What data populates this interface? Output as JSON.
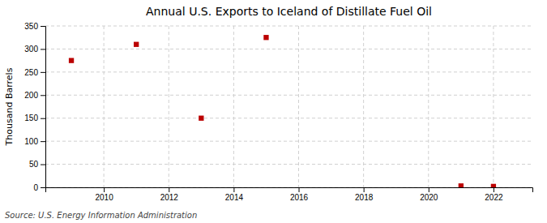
{
  "chart_data": {
    "type": "scatter",
    "title": "Annual U.S. Exports to Iceland of Distillate Fuel Oil",
    "y_label": "Thousand Barrels",
    "annotation": "Source: U.S. Energy Information Administration",
    "x": [
      2009,
      2011,
      2013,
      2015,
      2021,
      2022
    ],
    "values": [
      275,
      310,
      150,
      325,
      3,
      2
    ],
    "xlim": [
      2008.2,
      2023.2
    ],
    "ylim": [
      0,
      350
    ],
    "xticks": [
      2010,
      2012,
      2014,
      2016,
      2018,
      2020,
      2022
    ],
    "yticks": [
      0,
      50,
      100,
      150,
      200,
      250,
      300,
      350
    ],
    "color": "#bb0000",
    "marker": "square",
    "grid": true
  }
}
